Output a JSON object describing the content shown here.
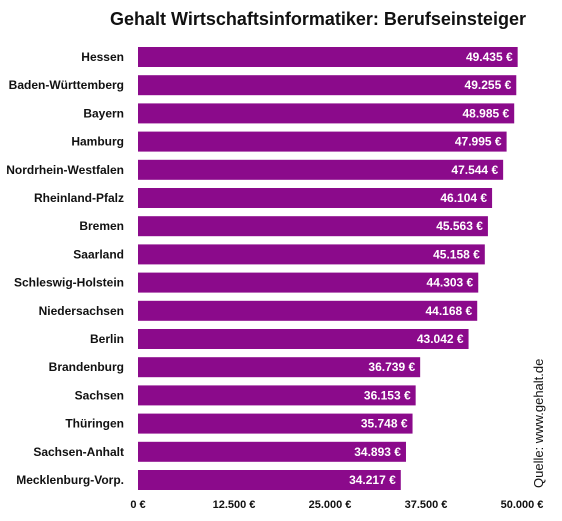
{
  "chart_data": {
    "type": "bar",
    "orientation": "horizontal",
    "title": "Gehalt Wirtschaftsinformatiker: Berufseinsteiger",
    "categories": [
      "Hessen",
      "Baden-Württemberg",
      "Bayern",
      "Hamburg",
      "Nordrhein-Westfalen",
      "Rheinland-Pfalz",
      "Bremen",
      "Saarland",
      "Schleswig-Holstein",
      "Niedersachsen",
      "Berlin",
      "Brandenburg",
      "Sachsen",
      "Thüringen",
      "Sachsen-Anhalt",
      "Mecklenburg-Vorp."
    ],
    "values": [
      49435,
      49255,
      48985,
      47995,
      47544,
      46104,
      45563,
      45158,
      44303,
      44168,
      43042,
      36739,
      36153,
      35748,
      34893,
      34217
    ],
    "value_labels": [
      "49.435 €",
      "49.255 €",
      "48.985 €",
      "47.995 €",
      "47.544 €",
      "46.104 €",
      "45.563 €",
      "45.158 €",
      "44.303 €",
      "44.168 €",
      "43.042 €",
      "36.739 €",
      "36.153 €",
      "35.748 €",
      "34.893 €",
      "34.217 €"
    ],
    "xlim": [
      0,
      50000
    ],
    "xticks": [
      0,
      12500,
      25000,
      37500,
      50000
    ],
    "xtick_labels": [
      "0 €",
      "12.500 €",
      "25.000 €",
      "37.500 €",
      "50.000 €"
    ],
    "xlabel": "",
    "ylabel": "",
    "grid": false,
    "legend": "none",
    "bar_color": "#8b0a8b",
    "source": "Quelle: www.gehalt.de"
  }
}
